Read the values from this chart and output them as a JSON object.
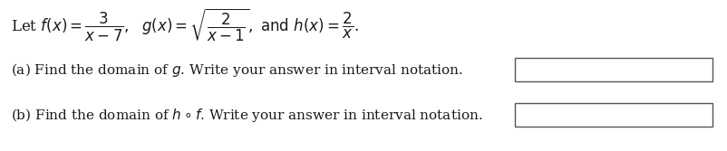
{
  "background_color": "#ffffff",
  "fig_width": 8.03,
  "fig_height": 1.67,
  "dpi": 100,
  "text_color": "#1a1a1a",
  "box_edge_color": "#555555",
  "font_size_math": 12,
  "font_size_text": 11
}
